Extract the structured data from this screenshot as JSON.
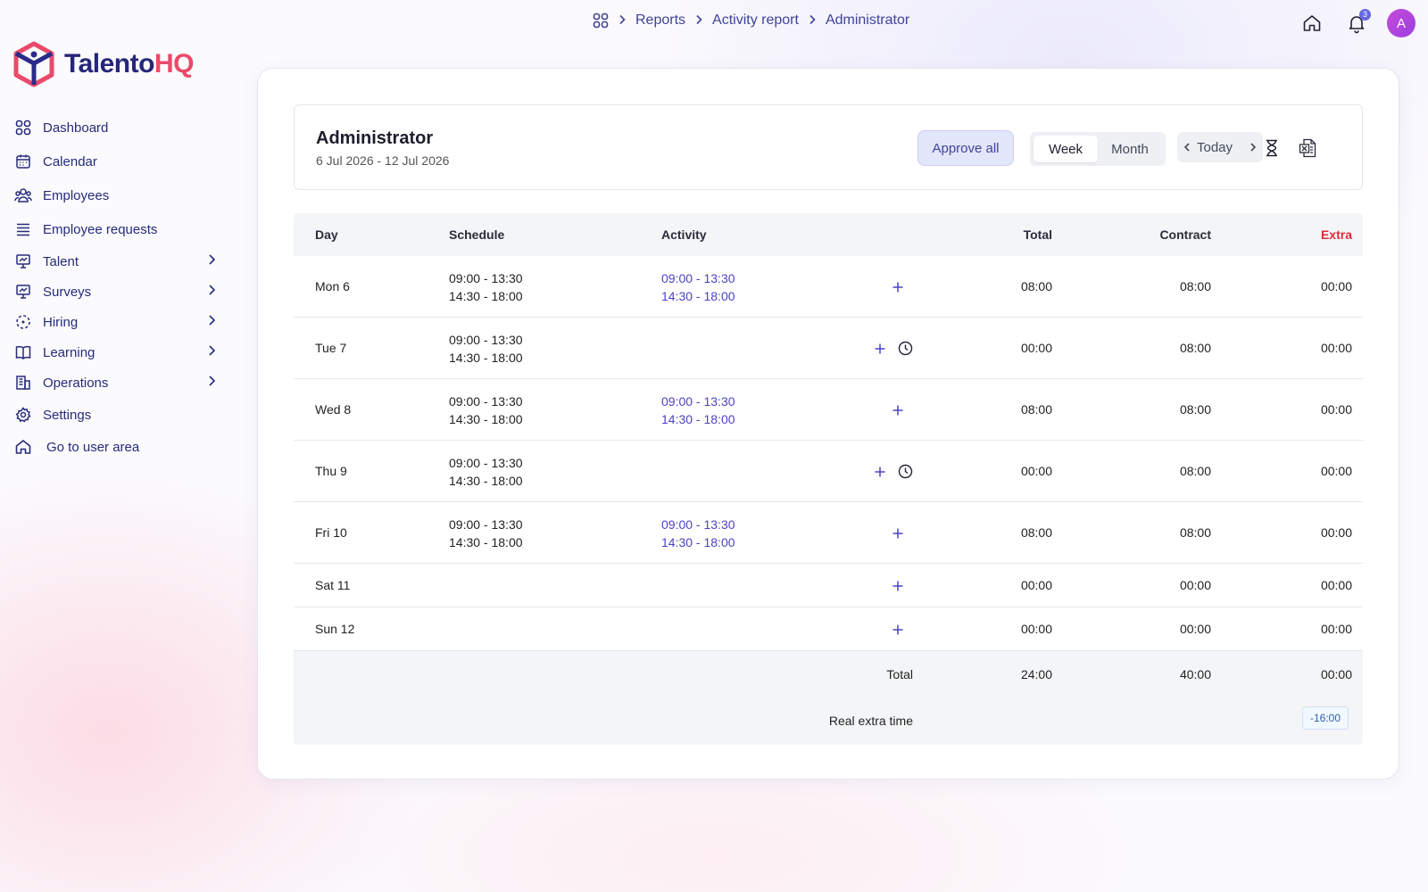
{
  "breadcrumb": {
    "items": [
      "Reports",
      "Activity report",
      "Administrator"
    ]
  },
  "topbar": {
    "notifications_count": "3",
    "avatar_initial": "A"
  },
  "brand": {
    "name_part1": "Talento",
    "name_part2": "HQ",
    "color_primary": "#26267a",
    "color_accent": "#ea4a6a"
  },
  "sidebar": {
    "items": [
      {
        "label": "Dashboard",
        "icon": "grid-icon"
      },
      {
        "label": "Calendar",
        "icon": "calendar-icon"
      },
      {
        "label": "Employees",
        "icon": "users-icon"
      },
      {
        "label": "Employee requests",
        "icon": "list-icon"
      },
      {
        "label": "Talent",
        "icon": "presentation-icon"
      },
      {
        "label": "Surveys",
        "icon": "presentation-icon"
      },
      {
        "label": "Hiring",
        "icon": "target-icon"
      },
      {
        "label": "Learning",
        "icon": "book-icon"
      },
      {
        "label": "Operations",
        "icon": "building-icon"
      },
      {
        "label": "Settings",
        "icon": "gear-icon"
      },
      {
        "label": "Go to user area",
        "icon": "home-icon"
      }
    ]
  },
  "report": {
    "employee_name": "Administrator",
    "date_range": "6 Jul 2026 - 12 Jul 2026",
    "approve_label": "Approve all",
    "view_week": "Week",
    "view_month": "Month",
    "today_label": "Today",
    "active_view": "Week"
  },
  "table": {
    "headers": {
      "day": "Day",
      "schedule": "Schedule",
      "activity": "Activity",
      "total": "Total",
      "contract": "Contract",
      "extra": "Extra"
    },
    "rows": [
      {
        "day": "Mon 6",
        "schedule": [
          "09:00 - 13:30",
          "14:30 - 18:00"
        ],
        "activity": [
          "09:00 - 13:30",
          "14:30 - 18:00"
        ],
        "total": "08:00",
        "contract": "08:00",
        "extra": "00:00",
        "clock": false
      },
      {
        "day": "Tue 7",
        "schedule": [
          "09:00 - 13:30",
          "14:30 - 18:00"
        ],
        "activity": [],
        "total": "00:00",
        "contract": "08:00",
        "extra": "00:00",
        "clock": true
      },
      {
        "day": "Wed 8",
        "schedule": [
          "09:00 - 13:30",
          "14:30 - 18:00"
        ],
        "activity": [
          "09:00 - 13:30",
          "14:30 - 18:00"
        ],
        "total": "08:00",
        "contract": "08:00",
        "extra": "00:00",
        "clock": false
      },
      {
        "day": "Thu 9",
        "schedule": [
          "09:00 - 13:30",
          "14:30 - 18:00"
        ],
        "activity": [],
        "total": "00:00",
        "contract": "08:00",
        "extra": "00:00",
        "clock": true
      },
      {
        "day": "Fri 10",
        "schedule": [
          "09:00 - 13:30",
          "14:30 - 18:00"
        ],
        "activity": [
          "09:00 - 13:30",
          "14:30 - 18:00"
        ],
        "total": "08:00",
        "contract": "08:00",
        "extra": "00:00",
        "clock": false
      },
      {
        "day": "Sat 11",
        "schedule": [],
        "activity": [],
        "total": "00:00",
        "contract": "00:00",
        "extra": "00:00",
        "clock": false
      },
      {
        "day": "Sun 12",
        "schedule": [],
        "activity": [],
        "total": "00:00",
        "contract": "00:00",
        "extra": "00:00",
        "clock": false
      }
    ],
    "totals": {
      "label": "Total",
      "total": "24:00",
      "contract": "40:00",
      "extra": "00:00",
      "real_extra_label": "Real extra time",
      "real_extra_value": "-16:00"
    }
  }
}
